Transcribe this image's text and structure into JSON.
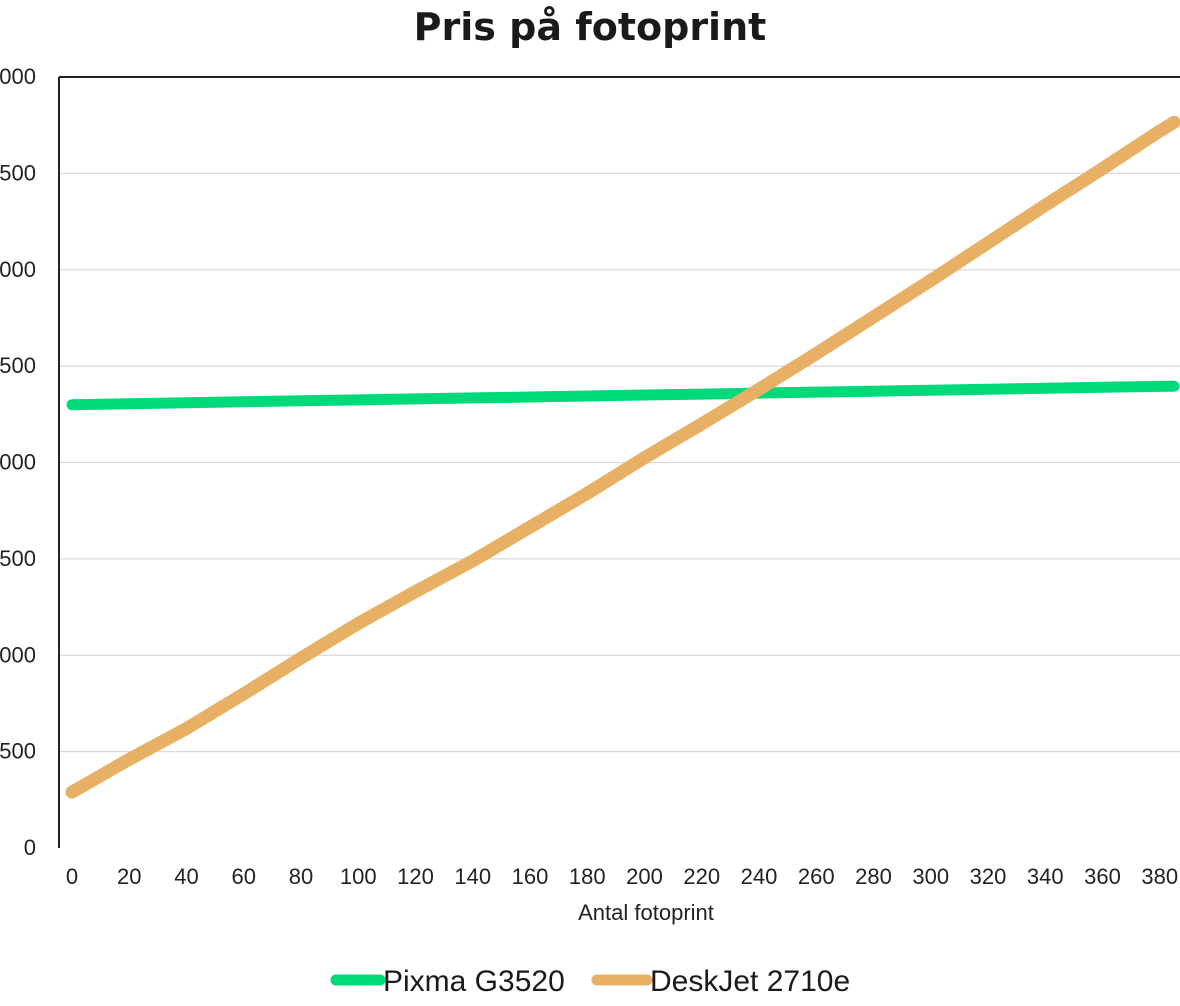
{
  "chart_data": {
    "type": "line",
    "title": "Pris på fotoprint",
    "xlabel": "Antal fotoprint",
    "ylabel": "",
    "x": [
      0,
      20,
      40,
      60,
      80,
      100,
      120,
      140,
      160,
      180,
      200,
      220,
      240,
      260,
      280,
      300,
      320,
      340,
      360,
      380,
      385
    ],
    "y_tick_labels": [
      "0",
      "500",
      "000",
      "500",
      "000",
      "500",
      "000",
      "500",
      "000"
    ],
    "ylim": [
      0,
      4000
    ],
    "grid": true,
    "legend_position": "bottom",
    "series": [
      {
        "name": "Pixma G3520",
        "color": "#00d97a",
        "values": [
          2300,
          2305,
          2310,
          2315,
          2320,
          2325,
          2330,
          2335,
          2340,
          2345,
          2350,
          2355,
          2360,
          2365,
          2370,
          2375,
          2380,
          2385,
          2390,
          2395,
          2396
        ]
      },
      {
        "name": "DeskJet 2710e",
        "color": "#e8b064",
        "values": [
          290,
          460,
          620,
          800,
          985,
          1165,
          1330,
          1490,
          1665,
          1840,
          2025,
          2200,
          2380,
          2565,
          2755,
          2945,
          3140,
          3335,
          3525,
          3720,
          3765
        ]
      }
    ]
  }
}
